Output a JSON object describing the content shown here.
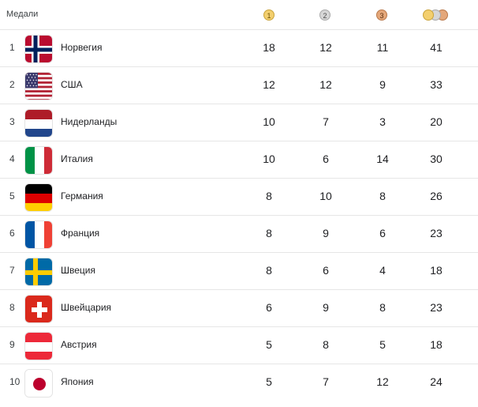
{
  "header": {
    "title": "Медали",
    "gold_label": "1",
    "silver_label": "2",
    "bronze_label": "3"
  },
  "colors": {
    "gold": "#f3cf6e",
    "silver": "#d6d6d6",
    "bronze": "#e4a77a"
  },
  "rows": [
    {
      "rank": "1",
      "country": "Норвегия",
      "flag": "norway-flag-icon",
      "gold": "18",
      "silver": "12",
      "bronze": "11",
      "total": "41"
    },
    {
      "rank": "2",
      "country": "США",
      "flag": "usa-flag-icon",
      "gold": "12",
      "silver": "12",
      "bronze": "9",
      "total": "33"
    },
    {
      "rank": "3",
      "country": "Нидерланды",
      "flag": "netherlands-flag-icon",
      "gold": "10",
      "silver": "7",
      "bronze": "3",
      "total": "20"
    },
    {
      "rank": "4",
      "country": "Италия",
      "flag": "italy-flag-icon",
      "gold": "10",
      "silver": "6",
      "bronze": "14",
      "total": "30"
    },
    {
      "rank": "5",
      "country": "Германия",
      "flag": "germany-flag-icon",
      "gold": "8",
      "silver": "10",
      "bronze": "8",
      "total": "26"
    },
    {
      "rank": "6",
      "country": "Франция",
      "flag": "france-flag-icon",
      "gold": "8",
      "silver": "9",
      "bronze": "6",
      "total": "23"
    },
    {
      "rank": "7",
      "country": "Швеция",
      "flag": "sweden-flag-icon",
      "gold": "8",
      "silver": "6",
      "bronze": "4",
      "total": "18"
    },
    {
      "rank": "8",
      "country": "Швейцария",
      "flag": "switzerland-flag-icon",
      "gold": "6",
      "silver": "9",
      "bronze": "8",
      "total": "23"
    },
    {
      "rank": "9",
      "country": "Австрия",
      "flag": "austria-flag-icon",
      "gold": "5",
      "silver": "8",
      "bronze": "5",
      "total": "18"
    },
    {
      "rank": "10",
      "country": "Япония",
      "flag": "japan-flag-icon",
      "gold": "5",
      "silver": "7",
      "bronze": "12",
      "total": "24"
    }
  ]
}
